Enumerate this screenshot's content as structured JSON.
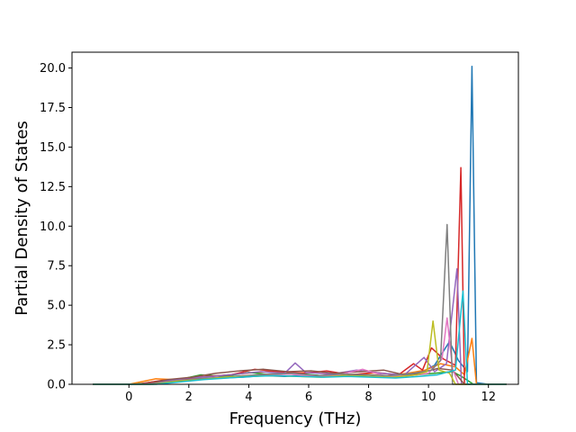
{
  "chart_data": {
    "type": "line",
    "title": "",
    "xlabel": "Frequency (THz)",
    "ylabel": "Partial Density of States",
    "xlim": [
      -1.9,
      13.0
    ],
    "ylim": [
      0,
      21.0
    ],
    "x_ticks": [
      0,
      2,
      4,
      6,
      8,
      10,
      12
    ],
    "y_ticks": [
      0.0,
      2.5,
      5.0,
      7.5,
      10.0,
      12.5,
      15.0,
      17.5,
      20.0
    ],
    "grid": false,
    "legend": "none",
    "series_colors": [
      "#1f77b4",
      "#ff7f0e",
      "#2ca02c",
      "#d62728",
      "#9467bd",
      "#8c564b",
      "#e377c2",
      "#7f7f7f",
      "#bcbd22",
      "#17becf"
    ],
    "series": [
      {
        "color": "#1f77b4",
        "x": [
          -1.2,
          0.0,
          0.5,
          1.0,
          1.6,
          2.2,
          3.0,
          3.8,
          4.5,
          5.2,
          6.0,
          6.8,
          7.6,
          8.4,
          9.2,
          9.8,
          10.2,
          10.7,
          11.0,
          11.3,
          11.45,
          11.6,
          12.0,
          12.6
        ],
        "y": [
          0,
          0,
          0.05,
          0.15,
          0.25,
          0.35,
          0.4,
          0.45,
          0.55,
          0.5,
          0.6,
          0.5,
          0.55,
          0.45,
          0.6,
          0.8,
          1.2,
          2.7,
          1.5,
          0.8,
          20.1,
          0.1,
          0,
          0
        ]
      },
      {
        "color": "#ff7f0e",
        "x": [
          -1.2,
          0.0,
          0.9,
          1.5,
          2.3,
          3.1,
          3.9,
          4.6,
          5.4,
          6.2,
          7.0,
          7.8,
          8.6,
          9.3,
          9.9,
          10.4,
          10.9,
          11.2,
          11.45,
          11.6,
          12.6
        ],
        "y": [
          0,
          0,
          0.35,
          0.3,
          0.45,
          0.55,
          0.7,
          0.8,
          0.7,
          0.75,
          0.6,
          0.65,
          0.55,
          0.7,
          0.9,
          1.3,
          1.1,
          0.6,
          2.9,
          0,
          0
        ]
      },
      {
        "color": "#2ca02c",
        "x": [
          -1.2,
          0.2,
          1.0,
          1.8,
          2.4,
          3.2,
          4.0,
          4.8,
          5.6,
          6.4,
          7.2,
          8.0,
          8.8,
          9.6,
          10.2,
          10.8,
          11.1,
          11.5,
          12.6
        ],
        "y": [
          0,
          0,
          0.2,
          0.35,
          0.6,
          0.5,
          0.75,
          0.6,
          0.7,
          0.55,
          0.65,
          0.5,
          0.45,
          0.6,
          0.7,
          0.8,
          0.5,
          0,
          0
        ]
      },
      {
        "color": "#d62728",
        "x": [
          -1.2,
          0.3,
          1.1,
          1.9,
          2.6,
          3.4,
          4.2,
          5.0,
          5.8,
          6.6,
          7.4,
          8.2,
          9.0,
          9.5,
          9.8,
          10.1,
          10.5,
          10.9,
          11.08,
          11.2,
          12.6
        ],
        "y": [
          0,
          0,
          0.25,
          0.35,
          0.5,
          0.6,
          0.95,
          0.8,
          0.7,
          0.85,
          0.6,
          0.75,
          0.6,
          1.3,
          0.9,
          2.3,
          1.6,
          1.2,
          13.7,
          0,
          0
        ]
      },
      {
        "color": "#9467bd",
        "x": [
          -1.2,
          0.4,
          1.2,
          2.0,
          2.8,
          3.6,
          4.4,
          5.2,
          5.55,
          5.9,
          6.8,
          7.6,
          8.4,
          9.2,
          9.85,
          10.2,
          10.6,
          10.95,
          11.1,
          12.6
        ],
        "y": [
          0,
          0,
          0.2,
          0.4,
          0.5,
          0.65,
          0.8,
          0.7,
          1.35,
          0.75,
          0.65,
          0.9,
          0.7,
          0.6,
          1.7,
          0.8,
          1.3,
          7.3,
          0,
          0
        ]
      },
      {
        "color": "#8c564b",
        "x": [
          -1.2,
          0.5,
          1.3,
          2.1,
          2.9,
          3.7,
          4.5,
          5.3,
          6.1,
          6.9,
          7.7,
          8.5,
          9.3,
          9.9,
          10.3,
          10.8,
          11.2,
          12.6
        ],
        "y": [
          0,
          0,
          0.3,
          0.45,
          0.7,
          0.85,
          0.95,
          0.8,
          0.85,
          0.7,
          0.8,
          0.9,
          0.55,
          0.8,
          1.0,
          0.9,
          0,
          0
        ]
      },
      {
        "color": "#e377c2",
        "x": [
          -1.2,
          0.6,
          1.4,
          2.2,
          3.0,
          3.8,
          4.6,
          5.4,
          6.2,
          7.0,
          7.8,
          8.6,
          9.4,
          10.0,
          10.45,
          10.62,
          10.8,
          11.0,
          12.6
        ],
        "y": [
          0,
          0,
          0.15,
          0.3,
          0.4,
          0.55,
          0.6,
          0.65,
          0.5,
          0.6,
          0.95,
          0.5,
          0.55,
          0.7,
          1.6,
          4.2,
          1.0,
          0,
          0
        ]
      },
      {
        "color": "#7f7f7f",
        "x": [
          -1.2,
          0.7,
          1.5,
          2.3,
          3.1,
          3.9,
          4.7,
          5.5,
          6.3,
          7.1,
          7.9,
          8.7,
          9.5,
          10.1,
          10.4,
          10.62,
          10.8,
          12.6
        ],
        "y": [
          0,
          0,
          0.2,
          0.35,
          0.45,
          0.55,
          0.65,
          0.7,
          0.55,
          0.65,
          0.6,
          0.55,
          0.7,
          0.9,
          1.5,
          10.1,
          0,
          0
        ]
      },
      {
        "color": "#bcbd22",
        "x": [
          -1.2,
          0.8,
          1.6,
          2.4,
          3.2,
          4.0,
          4.8,
          5.6,
          6.4,
          7.2,
          8.0,
          8.8,
          9.6,
          9.95,
          10.15,
          10.35,
          10.7,
          10.9,
          12.6
        ],
        "y": [
          0,
          0,
          0.2,
          0.3,
          0.45,
          0.5,
          0.55,
          0.5,
          0.45,
          0.55,
          0.5,
          0.45,
          0.6,
          0.8,
          4.0,
          0.9,
          0.7,
          0,
          0
        ]
      },
      {
        "color": "#17becf",
        "x": [
          -1.2,
          0.9,
          1.7,
          2.5,
          3.3,
          4.1,
          4.9,
          5.7,
          6.5,
          7.3,
          8.1,
          8.9,
          9.7,
          10.3,
          10.9,
          11.15,
          11.3,
          12.6
        ],
        "y": [
          0,
          0,
          0.15,
          0.3,
          0.4,
          0.5,
          0.55,
          0.5,
          0.45,
          0.5,
          0.45,
          0.4,
          0.5,
          0.6,
          0.9,
          5.9,
          0,
          0
        ]
      }
    ]
  }
}
